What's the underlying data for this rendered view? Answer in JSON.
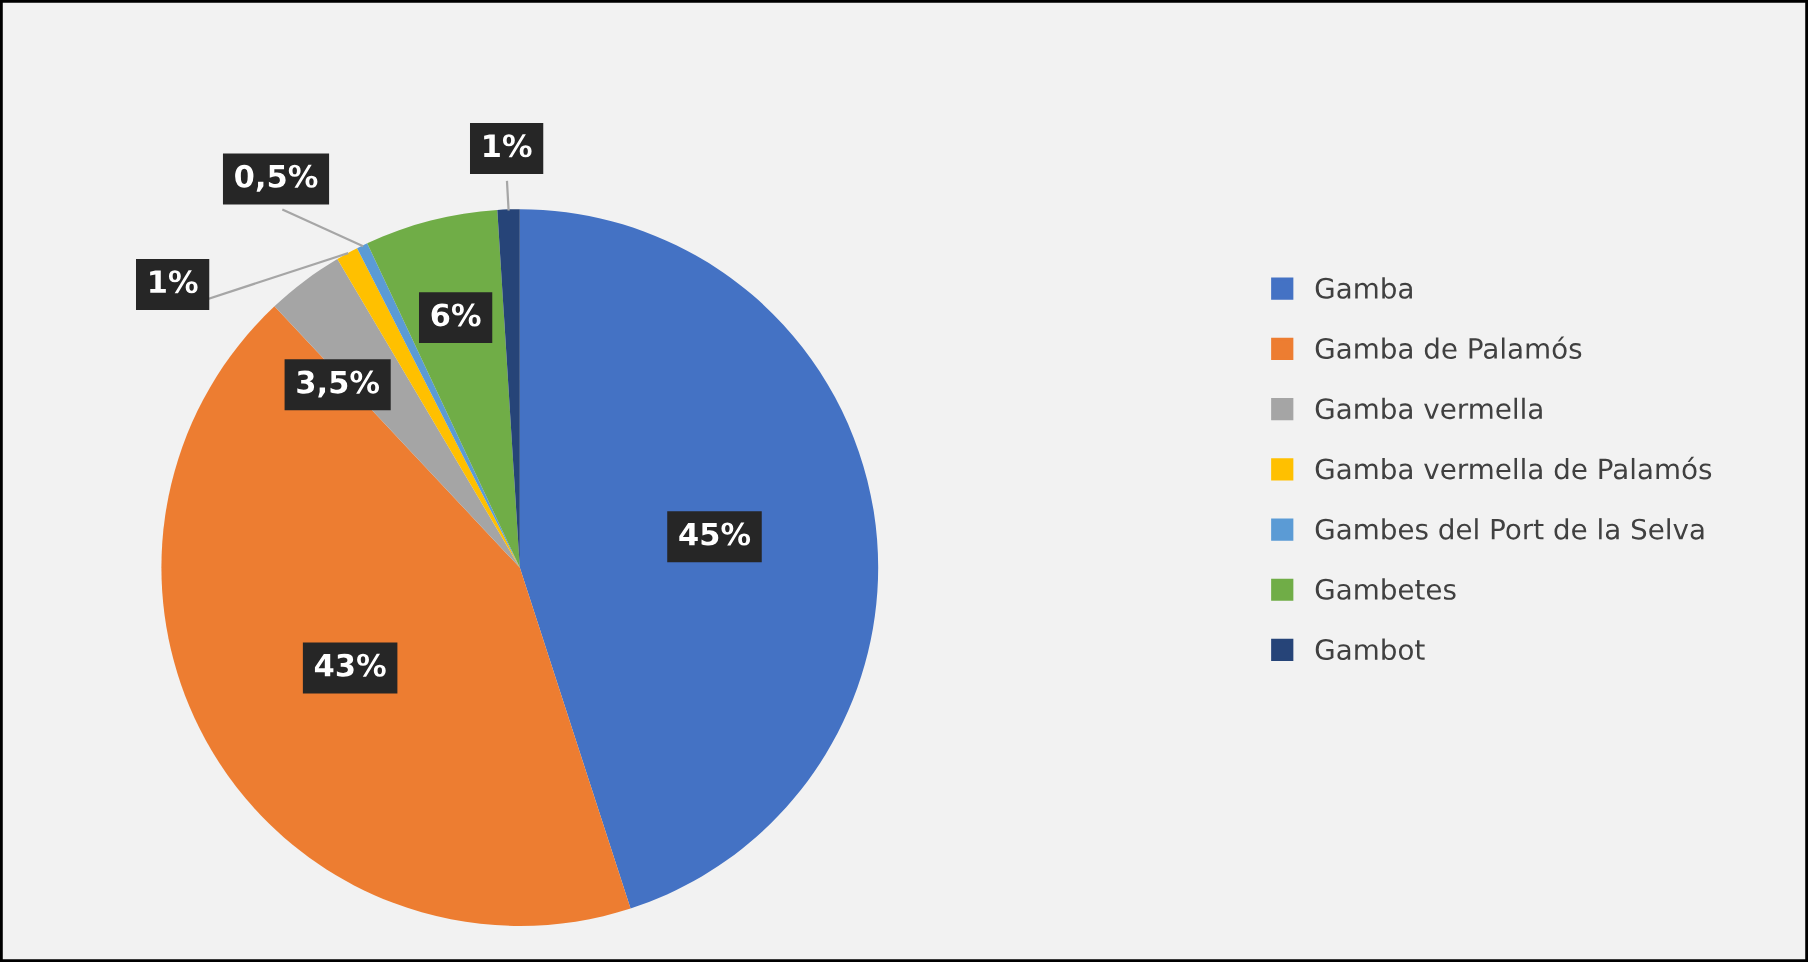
{
  "chart_data": {
    "type": "pie",
    "categories": [
      "Gamba",
      "Gamba de Palamós",
      "Gamba vermella",
      "Gamba vermella de Palamós",
      "Gambes del Port de la Selva",
      "Gambetes",
      "Gambot"
    ],
    "values": [
      45,
      43,
      3.5,
      1,
      0.5,
      6,
      1
    ],
    "value_labels": [
      "45%",
      "43%",
      "3,5%",
      "1%",
      "0,5%",
      "6%",
      "1%"
    ],
    "colors": [
      "#4472c4",
      "#ed7d31",
      "#a5a5a5",
      "#ffc000",
      "#5b9bd5",
      "#70ad47",
      "#264478"
    ],
    "legend": "right"
  }
}
